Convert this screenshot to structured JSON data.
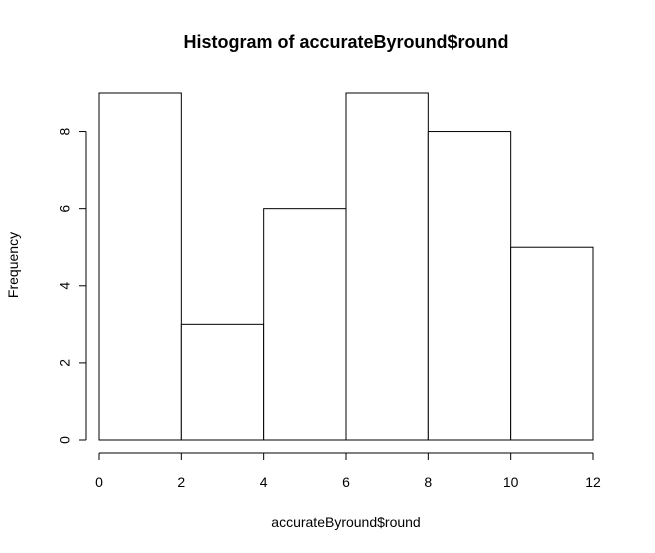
{
  "chart_data": {
    "type": "bar",
    "title": "Histogram of accurateByround$round",
    "xlabel": "accurateByround$round",
    "ylabel": "Frequency",
    "bins": [
      {
        "start": 0,
        "end": 2,
        "count": 9
      },
      {
        "start": 2,
        "end": 4,
        "count": 3
      },
      {
        "start": 4,
        "end": 6,
        "count": 6
      },
      {
        "start": 6,
        "end": 8,
        "count": 9
      },
      {
        "start": 8,
        "end": 10,
        "count": 8
      },
      {
        "start": 10,
        "end": 12,
        "count": 5
      }
    ],
    "xlim": [
      0,
      12
    ],
    "ylim": [
      0,
      9
    ],
    "xticks": [
      "0",
      "2",
      "4",
      "6",
      "8",
      "10",
      "12"
    ],
    "yticks": [
      "0",
      "2",
      "4",
      "6",
      "8"
    ],
    "grid": false,
    "legend": "none"
  },
  "colors": {
    "bar_fill": "#ffffff",
    "bar_stroke": "#000000",
    "text": "#000000",
    "background": "#ffffff"
  }
}
